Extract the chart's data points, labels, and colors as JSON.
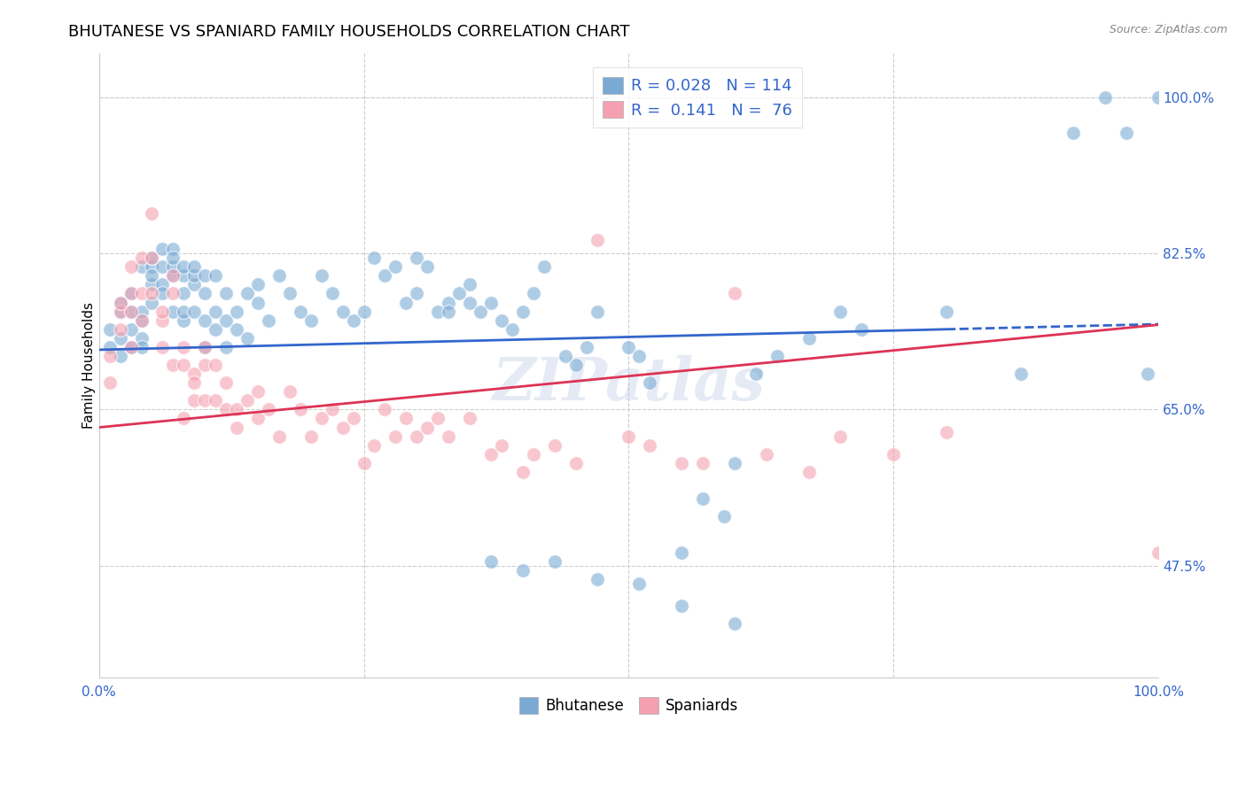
{
  "title": "BHUTANESE VS SPANIARD FAMILY HOUSEHOLDS CORRELATION CHART",
  "source": "Source: ZipAtlas.com",
  "ylabel": "Family Households",
  "xlabel": "",
  "xlim": [
    0.0,
    1.0
  ],
  "ylim": [
    0.35,
    1.05
  ],
  "y_tick_vals": [
    0.475,
    0.65,
    0.825,
    1.0
  ],
  "y_tick_labels": [
    "47.5%",
    "65.0%",
    "82.5%",
    "100.0%"
  ],
  "x_tick_positions": [
    0.0,
    0.25,
    0.5,
    0.75,
    1.0
  ],
  "x_tick_labels": [
    "0.0%",
    "",
    "",
    "",
    "100.0%"
  ],
  "grid_color": "#cccccc",
  "background_color": "#ffffff",
  "blue_color": "#7aaad4",
  "pink_color": "#f4a0b0",
  "line_blue": "#3366cc",
  "line_pink": "#dd3355",
  "legend_R_blue": "0.028",
  "legend_N_blue": "114",
  "legend_R_pink": "0.141",
  "legend_N_pink": "76",
  "watermark": "ZIPatlas",
  "title_fontsize": 13,
  "label_fontsize": 11,
  "tick_fontsize": 11,
  "source_fontsize": 9,
  "bhutanese_x": [
    0.01,
    0.01,
    0.02,
    0.02,
    0.02,
    0.02,
    0.03,
    0.03,
    0.03,
    0.03,
    0.04,
    0.04,
    0.04,
    0.04,
    0.04,
    0.05,
    0.05,
    0.05,
    0.05,
    0.05,
    0.06,
    0.06,
    0.06,
    0.06,
    0.07,
    0.07,
    0.07,
    0.07,
    0.07,
    0.08,
    0.08,
    0.08,
    0.08,
    0.08,
    0.09,
    0.09,
    0.09,
    0.09,
    0.1,
    0.1,
    0.1,
    0.1,
    0.11,
    0.11,
    0.11,
    0.12,
    0.12,
    0.12,
    0.13,
    0.13,
    0.14,
    0.14,
    0.15,
    0.15,
    0.16,
    0.17,
    0.18,
    0.19,
    0.2,
    0.21,
    0.22,
    0.23,
    0.24,
    0.25,
    0.26,
    0.27,
    0.28,
    0.29,
    0.3,
    0.31,
    0.32,
    0.33,
    0.34,
    0.35,
    0.36,
    0.37,
    0.38,
    0.39,
    0.4,
    0.41,
    0.42,
    0.44,
    0.45,
    0.46,
    0.47,
    0.5,
    0.51,
    0.52,
    0.55,
    0.57,
    0.59,
    0.6,
    0.62,
    0.64,
    0.67,
    0.7,
    0.72,
    0.8,
    0.87,
    0.92,
    0.95,
    0.97,
    0.99,
    1.0,
    0.3,
    0.33,
    0.35,
    0.37,
    0.4,
    0.43,
    0.47,
    0.51,
    0.55,
    0.6
  ],
  "bhutanese_y": [
    0.72,
    0.74,
    0.73,
    0.71,
    0.76,
    0.77,
    0.72,
    0.74,
    0.76,
    0.78,
    0.73,
    0.75,
    0.76,
    0.72,
    0.81,
    0.79,
    0.81,
    0.82,
    0.77,
    0.8,
    0.81,
    0.83,
    0.79,
    0.78,
    0.8,
    0.76,
    0.83,
    0.81,
    0.82,
    0.75,
    0.8,
    0.78,
    0.76,
    0.81,
    0.76,
    0.79,
    0.8,
    0.81,
    0.72,
    0.75,
    0.78,
    0.8,
    0.74,
    0.76,
    0.8,
    0.72,
    0.75,
    0.78,
    0.74,
    0.76,
    0.73,
    0.78,
    0.79,
    0.77,
    0.75,
    0.8,
    0.78,
    0.76,
    0.75,
    0.8,
    0.78,
    0.76,
    0.75,
    0.76,
    0.82,
    0.8,
    0.81,
    0.77,
    0.82,
    0.81,
    0.76,
    0.77,
    0.78,
    0.79,
    0.76,
    0.77,
    0.75,
    0.74,
    0.76,
    0.78,
    0.81,
    0.71,
    0.7,
    0.72,
    0.76,
    0.72,
    0.71,
    0.68,
    0.49,
    0.55,
    0.53,
    0.59,
    0.69,
    0.71,
    0.73,
    0.76,
    0.74,
    0.76,
    0.69,
    0.96,
    1.0,
    0.96,
    0.69,
    1.0,
    0.78,
    0.76,
    0.77,
    0.48,
    0.47,
    0.48,
    0.46,
    0.455,
    0.43,
    0.41
  ],
  "spaniard_x": [
    0.01,
    0.01,
    0.02,
    0.02,
    0.02,
    0.03,
    0.03,
    0.03,
    0.03,
    0.04,
    0.04,
    0.04,
    0.05,
    0.05,
    0.05,
    0.06,
    0.06,
    0.06,
    0.07,
    0.07,
    0.07,
    0.08,
    0.08,
    0.08,
    0.09,
    0.09,
    0.09,
    0.1,
    0.1,
    0.1,
    0.11,
    0.11,
    0.12,
    0.12,
    0.13,
    0.13,
    0.14,
    0.15,
    0.15,
    0.16,
    0.17,
    0.18,
    0.19,
    0.2,
    0.21,
    0.22,
    0.23,
    0.24,
    0.25,
    0.26,
    0.27,
    0.28,
    0.29,
    0.3,
    0.31,
    0.32,
    0.33,
    0.35,
    0.37,
    0.38,
    0.4,
    0.41,
    0.43,
    0.45,
    0.47,
    0.5,
    0.52,
    0.55,
    0.57,
    0.6,
    0.63,
    0.67,
    0.7,
    0.75,
    0.8,
    1.0
  ],
  "spaniard_y": [
    0.71,
    0.68,
    0.76,
    0.77,
    0.74,
    0.72,
    0.78,
    0.76,
    0.81,
    0.75,
    0.82,
    0.78,
    0.87,
    0.82,
    0.78,
    0.75,
    0.76,
    0.72,
    0.8,
    0.78,
    0.7,
    0.7,
    0.72,
    0.64,
    0.69,
    0.68,
    0.66,
    0.66,
    0.7,
    0.72,
    0.7,
    0.66,
    0.65,
    0.68,
    0.65,
    0.63,
    0.66,
    0.64,
    0.67,
    0.65,
    0.62,
    0.67,
    0.65,
    0.62,
    0.64,
    0.65,
    0.63,
    0.64,
    0.59,
    0.61,
    0.65,
    0.62,
    0.64,
    0.62,
    0.63,
    0.64,
    0.62,
    0.64,
    0.6,
    0.61,
    0.58,
    0.6,
    0.61,
    0.59,
    0.84,
    0.62,
    0.61,
    0.59,
    0.59,
    0.78,
    0.6,
    0.58,
    0.62,
    0.6,
    0.625,
    0.49
  ]
}
